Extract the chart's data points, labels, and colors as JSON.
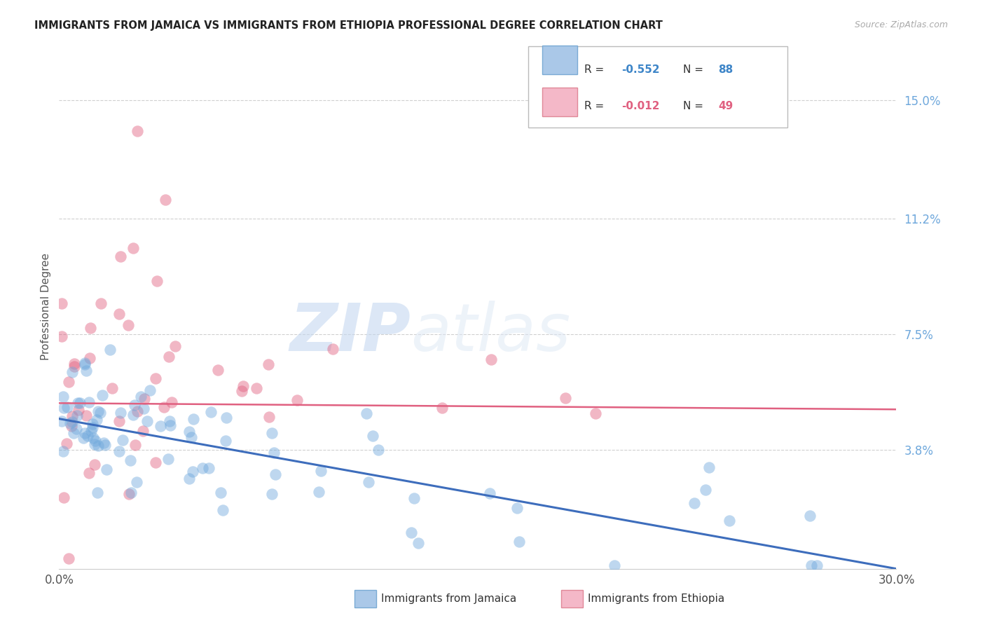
{
  "title": "IMMIGRANTS FROM JAMAICA VS IMMIGRANTS FROM ETHIOPIA PROFESSIONAL DEGREE CORRELATION CHART",
  "source": "Source: ZipAtlas.com",
  "ylabel": "Professional Degree",
  "xlim": [
    0.0,
    0.3
  ],
  "ylim": [
    0.0,
    0.168
  ],
  "yticks": [
    0.038,
    0.075,
    0.112,
    0.15
  ],
  "ytick_labels": [
    "3.8%",
    "7.5%",
    "11.2%",
    "15.0%"
  ],
  "xticks": [
    0.0,
    0.05,
    0.1,
    0.15,
    0.2,
    0.25,
    0.3
  ],
  "xtick_labels": [
    "0.0%",
    "",
    "",
    "",
    "",
    "",
    "30.0%"
  ],
  "jamaica_color": "#6fa8dc",
  "ethiopia_color": "#e06080",
  "jamaica_R": -0.552,
  "jamaica_N": 88,
  "ethiopia_R": -0.012,
  "ethiopia_N": 49,
  "watermark_zip": "ZIP",
  "watermark_atlas": "atlas",
  "background_color": "#ffffff",
  "grid_color": "#d0d0d0",
  "title_color": "#222222",
  "source_color": "#aaaaaa",
  "ylabel_color": "#555555",
  "ytick_color": "#6fa8dc",
  "xtick_color": "#555555",
  "legend_R_jamaica_color": "#3d85c8",
  "legend_N_jamaica_color": "#3d85c8",
  "legend_R_ethiopia_color": "#e06080",
  "legend_N_ethiopia_color": "#e06080",
  "jam_line_color": "#3d6dbc",
  "eth_line_color": "#e06080",
  "jam_line_y0": 0.048,
  "jam_line_y1": 0.0,
  "eth_line_y0": 0.053,
  "eth_line_y1": 0.051
}
